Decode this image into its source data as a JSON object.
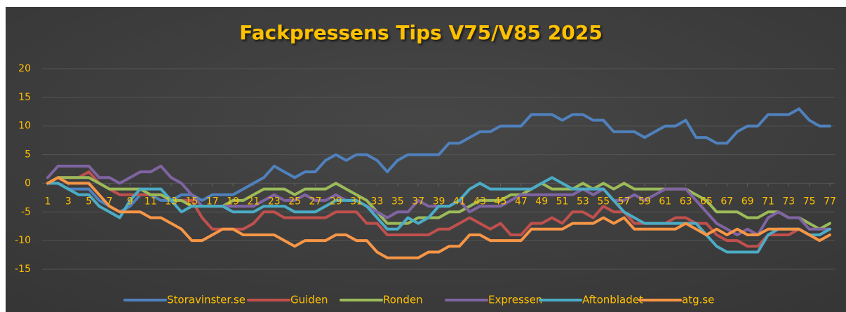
{
  "chart_data": {
    "type": "line",
    "title": "Fackpressens Tips V75/V85 2025",
    "x": [
      1,
      2,
      3,
      4,
      5,
      6,
      7,
      8,
      9,
      10,
      11,
      12,
      13,
      14,
      15,
      16,
      17,
      18,
      19,
      20,
      21,
      22,
      23,
      24,
      25,
      26,
      27,
      28,
      29,
      30,
      31,
      32,
      33,
      34,
      35,
      36,
      37,
      38,
      39,
      40,
      41,
      42,
      43,
      44,
      45,
      46,
      47,
      48,
      49,
      50,
      51,
      52,
      53,
      54,
      55,
      56,
      57,
      58,
      59,
      60,
      61,
      62,
      63,
      64,
      65,
      66,
      67,
      68,
      69,
      70,
      71,
      72,
      73,
      74,
      75,
      76,
      77
    ],
    "xlim": [
      1,
      77
    ],
    "xticks": [
      1,
      3,
      5,
      7,
      9,
      11,
      13,
      15,
      17,
      19,
      21,
      23,
      25,
      27,
      29,
      31,
      33,
      35,
      37,
      39,
      41,
      43,
      45,
      47,
      49,
      51,
      53,
      55,
      57,
      59,
      61,
      63,
      65,
      67,
      69,
      71,
      73,
      75,
      77
    ],
    "ylim": [
      -15,
      20
    ],
    "yticks": [
      -15,
      -10,
      -5,
      0,
      5,
      10,
      15,
      20
    ],
    "grid": true,
    "legend": "bottom",
    "series": [
      {
        "name": "Storavinster.se",
        "color": "#4f81bd",
        "values": [
          0,
          0,
          -1,
          -1,
          -1,
          -3,
          -4,
          -5,
          -4,
          -2,
          -2,
          -3,
          -3,
          -2,
          -2,
          -3,
          -2,
          -2,
          -2,
          -1,
          0,
          1,
          3,
          2,
          1,
          2,
          2,
          4,
          5,
          4,
          5,
          5,
          4,
          2,
          4,
          5,
          5,
          5,
          5,
          7,
          7,
          8,
          9,
          9,
          10,
          10,
          10,
          12,
          12,
          12,
          11,
          12,
          12,
          11,
          11,
          9,
          9,
          9,
          8,
          9,
          10,
          10,
          11,
          8,
          8,
          7,
          7,
          9,
          10,
          10,
          12,
          12,
          12,
          13,
          11,
          10,
          10
        ]
      },
      {
        "name": "Guiden",
        "color": "#c0504d",
        "values": [
          0,
          1,
          1,
          1,
          2,
          0,
          -1,
          -2,
          -2,
          -2,
          -2,
          -2,
          -3,
          -3,
          -3,
          -6,
          -8,
          -8,
          -8,
          -8,
          -7,
          -5,
          -5,
          -6,
          -6,
          -6,
          -6,
          -6,
          -5,
          -5,
          -5,
          -7,
          -7,
          -9,
          -9,
          -9,
          -9,
          -9,
          -8,
          -8,
          -7,
          -6,
          -7,
          -8,
          -7,
          -9,
          -9,
          -7,
          -7,
          -6,
          -7,
          -5,
          -5,
          -6,
          -4,
          -5,
          -5,
          -7,
          -7,
          -7,
          -7,
          -6,
          -6,
          -7,
          -7,
          -9,
          -10,
          -10,
          -11,
          -11,
          -9,
          -9,
          -9,
          -8,
          -9,
          -9,
          -8
        ]
      },
      {
        "name": "Ronden",
        "color": "#9bbb59",
        "values": [
          0,
          1,
          1,
          1,
          1,
          0,
          -1,
          -1,
          -1,
          -1,
          -2,
          -2,
          -3,
          -3,
          -4,
          -4,
          -4,
          -4,
          -3,
          -3,
          -2,
          -1,
          -1,
          -1,
          -2,
          -1,
          -1,
          -1,
          0,
          -1,
          -2,
          -3,
          -5,
          -7,
          -7,
          -7,
          -6,
          -6,
          -6,
          -5,
          -5,
          -4,
          -3,
          -3,
          -3,
          -2,
          -2,
          -1,
          0,
          -1,
          -1,
          -1,
          0,
          -1,
          0,
          -1,
          0,
          -1,
          -1,
          -1,
          -1,
          -1,
          -1,
          -2,
          -3,
          -5,
          -5,
          -5,
          -6,
          -6,
          -5,
          -5,
          -6,
          -6,
          -7,
          -8,
          -7
        ]
      },
      {
        "name": "Expressen",
        "color": "#8064a2",
        "values": [
          1,
          3,
          3,
          3,
          3,
          1,
          1,
          0,
          1,
          2,
          2,
          3,
          1,
          0,
          -2,
          -4,
          -4,
          -4,
          -4,
          -4,
          -4,
          -3,
          -2,
          -3,
          -3,
          -2,
          -3,
          -3,
          -2,
          -3,
          -3,
          -4,
          -5,
          -6,
          -5,
          -5,
          -3,
          -4,
          -4,
          -4,
          -3,
          -5,
          -4,
          -4,
          -4,
          -3,
          -2,
          -2,
          -2,
          -2,
          -2,
          -2,
          -1,
          -2,
          -1,
          -3,
          -3,
          -2,
          -3,
          -2,
          -1,
          -1,
          -1,
          -3,
          -5,
          -7,
          -8,
          -9,
          -8,
          -9,
          -6,
          -5,
          -6,
          -6,
          -8,
          -8,
          -8
        ]
      },
      {
        "name": "Aftonbladet",
        "color": "#4bacc6",
        "values": [
          0,
          0,
          -1,
          -2,
          -2,
          -4,
          -5,
          -6,
          -3,
          -1,
          -1,
          -1,
          -3,
          -5,
          -4,
          -4,
          -4,
          -4,
          -5,
          -5,
          -5,
          -4,
          -4,
          -4,
          -5,
          -5,
          -5,
          -4,
          -3,
          -3,
          -3,
          -4,
          -6,
          -8,
          -8,
          -6,
          -7,
          -6,
          -4,
          -4,
          -3,
          -1,
          0,
          -1,
          -1,
          -1,
          -1,
          -1,
          0,
          1,
          0,
          -1,
          -1,
          -1,
          -1,
          -3,
          -5,
          -6,
          -7,
          -7,
          -7,
          -7,
          -7,
          -7,
          -9,
          -11,
          -12,
          -12,
          -12,
          -12,
          -9,
          -8,
          -8,
          -8,
          -9,
          -9,
          -8
        ]
      },
      {
        "name": "atg.se",
        "color": "#f79646",
        "values": [
          0,
          1,
          0,
          0,
          0,
          -2,
          -4,
          -5,
          -5,
          -5,
          -6,
          -6,
          -7,
          -8,
          -10,
          -10,
          -9,
          -8,
          -8,
          -9,
          -9,
          -9,
          -9,
          -10,
          -11,
          -10,
          -10,
          -10,
          -9,
          -9,
          -10,
          -10,
          -12,
          -13,
          -13,
          -13,
          -13,
          -12,
          -12,
          -11,
          -11,
          -9,
          -9,
          -10,
          -10,
          -10,
          -10,
          -8,
          -8,
          -8,
          -8,
          -7,
          -7,
          -7,
          -6,
          -7,
          -6,
          -8,
          -8,
          -8,
          -8,
          -8,
          -7,
          -8,
          -9,
          -8,
          -9,
          -8,
          -9,
          -9,
          -8,
          -8,
          -8,
          -8,
          -9,
          -10,
          -9
        ]
      }
    ]
  }
}
